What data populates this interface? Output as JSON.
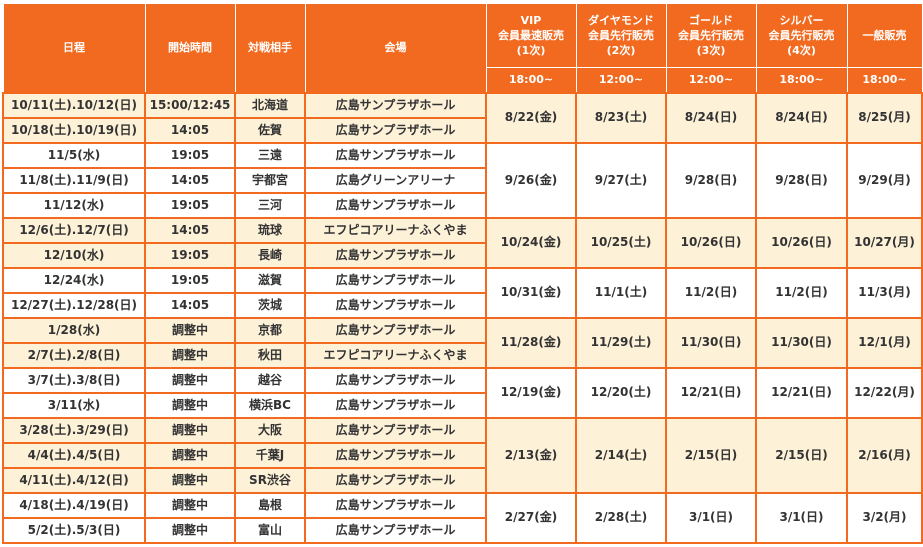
{
  "table": {
    "header": {
      "columns": [
        "日程",
        "開始時間",
        "対戦相手",
        "会場"
      ],
      "sales": [
        {
          "lines": [
            "VIP",
            "会員最速販売",
            "(1次)"
          ],
          "time": "18:00~"
        },
        {
          "lines": [
            "ダイヤモンド",
            "会員先行販売",
            "(2次)"
          ],
          "time": "12:00~"
        },
        {
          "lines": [
            "ゴールド",
            "会員先行販売",
            "(3次)"
          ],
          "time": "12:00~"
        },
        {
          "lines": [
            "シルバー",
            "会員先行販売",
            "(4次)"
          ],
          "time": "18:00~"
        },
        {
          "lines": [
            "一般販売"
          ],
          "time": "18:00~"
        }
      ]
    },
    "groups": [
      {
        "games": [
          [
            "10/11(土).10/12(日)",
            "15:00/12:45",
            "北海道",
            "広島サンプラザホール"
          ],
          [
            "10/18(土).10/19(日)",
            "14:05",
            "佐賀",
            "広島サンプラザホール"
          ]
        ],
        "sales": [
          "8/22(金)",
          "8/23(土)",
          "8/24(日)",
          "8/24(日)",
          "8/25(月)"
        ]
      },
      {
        "games": [
          [
            "11/5(水)",
            "19:05",
            "三遠",
            "広島サンプラザホール"
          ],
          [
            "11/8(土).11/9(日)",
            "14:05",
            "宇都宮",
            "広島グリーンアリーナ"
          ],
          [
            "11/12(水)",
            "19:05",
            "三河",
            "広島サンプラザホール"
          ]
        ],
        "sales": [
          "9/26(金)",
          "9/27(土)",
          "9/28(日)",
          "9/28(日)",
          "9/29(月)"
        ]
      },
      {
        "games": [
          [
            "12/6(土).12/7(日)",
            "14:05",
            "琉球",
            "エフピコアリーナふくやま"
          ],
          [
            "12/10(水)",
            "19:05",
            "長崎",
            "広島サンプラザホール"
          ]
        ],
        "sales": [
          "10/24(金)",
          "10/25(土)",
          "10/26(日)",
          "10/26(日)",
          "10/27(月)"
        ]
      },
      {
        "games": [
          [
            "12/24(水)",
            "19:05",
            "滋賀",
            "広島サンプラザホール"
          ],
          [
            "12/27(土).12/28(日)",
            "14:05",
            "茨城",
            "広島サンプラザホール"
          ]
        ],
        "sales": [
          "10/31(金)",
          "11/1(土)",
          "11/2(日)",
          "11/2(日)",
          "11/3(月)"
        ]
      },
      {
        "games": [
          [
            "1/28(水)",
            "調整中",
            "京都",
            "広島サンプラザホール"
          ],
          [
            "2/7(土).2/8(日)",
            "調整中",
            "秋田",
            "エフピコアリーナふくやま"
          ]
        ],
        "sales": [
          "11/28(金)",
          "11/29(土)",
          "11/30(日)",
          "11/30(日)",
          "12/1(月)"
        ]
      },
      {
        "games": [
          [
            "3/7(土).3/8(日)",
            "調整中",
            "越谷",
            "広島サンプラザホール"
          ],
          [
            "3/11(水)",
            "調整中",
            "横浜BC",
            "広島サンプラザホール"
          ]
        ],
        "sales": [
          "12/19(金)",
          "12/20(土)",
          "12/21(日)",
          "12/21(日)",
          "12/22(月)"
        ]
      },
      {
        "games": [
          [
            "3/28(土).3/29(日)",
            "調整中",
            "大阪",
            "広島サンプラザホール"
          ],
          [
            "4/4(土).4/5(日)",
            "調整中",
            "千葉J",
            "広島サンプラザホール"
          ],
          [
            "4/11(土).4/12(日)",
            "調整中",
            "SR渋谷",
            "広島サンプラザホール"
          ]
        ],
        "sales": [
          "2/13(金)",
          "2/14(土)",
          "2/15(日)",
          "2/15(日)",
          "2/16(月)"
        ]
      },
      {
        "games": [
          [
            "4/18(土).4/19(日)",
            "調整中",
            "島根",
            "広島サンプラザホール"
          ],
          [
            "5/2(土).5/3(日)",
            "調整中",
            "富山",
            "広島サンプラザホール"
          ]
        ],
        "sales": [
          "2/27(金)",
          "2/28(土)",
          "3/1(日)",
          "3/1(日)",
          "3/2(月)"
        ]
      }
    ]
  }
}
